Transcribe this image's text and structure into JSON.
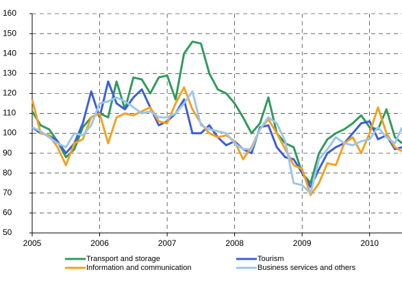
{
  "chart_data": {
    "type": "line",
    "x": [
      2005,
      2005.125,
      2005.25,
      2005.375,
      2005.5,
      2005.625,
      2005.75,
      2005.875,
      2006,
      2006.125,
      2006.25,
      2006.375,
      2006.5,
      2006.625,
      2006.75,
      2006.875,
      2007,
      2007.125,
      2007.25,
      2007.375,
      2007.5,
      2007.625,
      2007.75,
      2007.875,
      2008,
      2008.125,
      2008.25,
      2008.375,
      2008.5,
      2008.625,
      2008.75,
      2008.875,
      2009,
      2009.125,
      2009.25,
      2009.375,
      2009.5,
      2009.625,
      2009.75,
      2009.875,
      2010,
      2010.125,
      2010.25,
      2010.375,
      2010.48
    ],
    "series": [
      {
        "name": "Transport and storage",
        "color": "#2e9a5a",
        "values": [
          111,
          104,
          102,
          96,
          88,
          92,
          103,
          108,
          110,
          108,
          126,
          112,
          128,
          127,
          120,
          128,
          129,
          117,
          140,
          146,
          145,
          130,
          122,
          120,
          115,
          108,
          100,
          105,
          118,
          100,
          95,
          93,
          80,
          75,
          90,
          97,
          100,
          102,
          105,
          109,
          103,
          102,
          112,
          98,
          95
        ]
      },
      {
        "name": "Tourism",
        "color": "#3b5ddb",
        "values": [
          103,
          100,
          99,
          96,
          90,
          95,
          105,
          121,
          108,
          126,
          115,
          112,
          118,
          122,
          113,
          104,
          106,
          110,
          117,
          100,
          100,
          104,
          98,
          94,
          96,
          92,
          90,
          103,
          104,
          93,
          88,
          87,
          80,
          73,
          82,
          90,
          93,
          95,
          100,
          105,
          106,
          97,
          99,
          92,
          93
        ]
      },
      {
        "name": "Information and communication",
        "color": "#f5a01e",
        "values": [
          117,
          100,
          99,
          93,
          84,
          95,
          97,
          108,
          110,
          95,
          108,
          110,
          109,
          111,
          113,
          106,
          105,
          115,
          123,
          112,
          105,
          100,
          98,
          99,
          96,
          87,
          93,
          102,
          107,
          100,
          92,
          84,
          82,
          69,
          75,
          85,
          84,
          95,
          98,
          90,
          100,
          113,
          100,
          93,
          91
        ]
      },
      {
        "name": "Business services and others",
        "color": "#9cc5ec",
        "values": [
          103,
          101,
          98,
          95,
          93,
          100,
          99,
          104,
          115,
          116,
          118,
          116,
          113,
          110,
          111,
          108,
          108,
          110,
          115,
          121,
          104,
          102,
          101,
          100,
          95,
          92,
          92,
          102,
          108,
          105,
          96,
          75,
          74,
          70,
          87,
          92,
          98,
          95,
          94,
          96,
          97,
          103,
          98,
          95,
          103
        ]
      }
    ],
    "xlim": [
      2005,
      2010.48
    ],
    "xticks": [
      2005,
      2006,
      2007,
      2008,
      2009,
      2010
    ],
    "ylim": [
      50,
      160
    ],
    "yticks": [
      50,
      60,
      70,
      80,
      90,
      100,
      110,
      120,
      130,
      140,
      150,
      160
    ],
    "grid": true,
    "legend": "bottom"
  }
}
